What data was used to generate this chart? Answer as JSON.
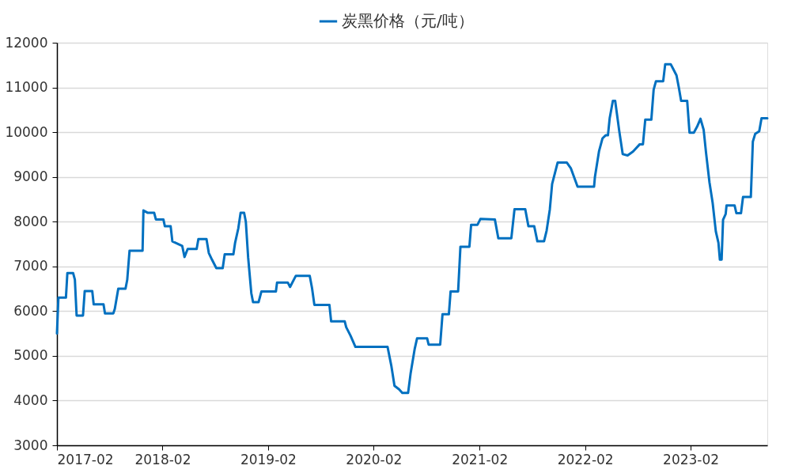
{
  "chart_data": {
    "type": "line",
    "x": [
      "2017-02-01",
      "2017-02-06",
      "2017-03-04",
      "2017-03-09",
      "2017-03-29",
      "2017-04-04",
      "2017-04-10",
      "2017-05-02",
      "2017-05-08",
      "2017-06-03",
      "2017-06-08",
      "2017-07-12",
      "2017-07-17",
      "2017-08-15",
      "2017-08-20",
      "2017-09-01",
      "2017-09-26",
      "2017-10-02",
      "2017-10-10",
      "2017-11-24",
      "2017-11-27",
      "2017-12-11",
      "2018-01-03",
      "2018-01-09",
      "2018-02-04",
      "2018-02-09",
      "2018-03-01",
      "2018-03-07",
      "2018-04-10",
      "2018-04-18",
      "2018-04-29",
      "2018-05-30",
      "2018-06-05",
      "2018-07-03",
      "2018-07-11",
      "2018-07-22",
      "2018-08-06",
      "2018-08-28",
      "2018-09-04",
      "2018-10-04",
      "2018-10-10",
      "2018-10-21",
      "2018-10-29",
      "2018-11-10",
      "2018-11-16",
      "2018-11-24",
      "2018-12-05",
      "2018-12-11",
      "2018-12-30",
      "2019-01-09",
      "2019-02-28",
      "2019-03-04",
      "2019-04-10",
      "2019-04-18",
      "2019-05-08",
      "2019-06-25",
      "2019-07-03",
      "2019-07-11",
      "2019-09-01",
      "2019-09-07",
      "2019-10-24",
      "2019-10-29",
      "2019-11-13",
      "2019-11-30",
      "2020-03-20",
      "2020-04-02",
      "2020-04-13",
      "2020-04-29",
      "2020-05-10",
      "2020-05-30",
      "2020-06-08",
      "2020-06-22",
      "2020-06-30",
      "2020-08-04",
      "2020-08-09",
      "2020-09-18",
      "2020-09-26",
      "2020-10-18",
      "2020-10-24",
      "2020-11-19",
      "2020-11-27",
      "2020-12-28",
      "2021-01-03",
      "2021-01-25",
      "2021-02-04",
      "2021-03-26",
      "2021-04-07",
      "2021-05-22",
      "2021-06-02",
      "2021-07-09",
      "2021-07-20",
      "2021-08-09",
      "2021-08-20",
      "2021-09-12",
      "2021-09-21",
      "2021-10-02",
      "2021-10-10",
      "2021-10-29",
      "2021-11-30",
      "2021-12-14",
      "2022-01-06",
      "2022-03-04",
      "2022-03-07",
      "2022-03-21",
      "2022-04-02",
      "2022-04-13",
      "2022-04-21",
      "2022-04-27",
      "2022-05-08",
      "2022-05-16",
      "2022-05-30",
      "2022-06-11",
      "2022-06-28",
      "2022-07-17",
      "2022-08-09",
      "2022-08-20",
      "2022-08-28",
      "2022-09-18",
      "2022-09-26",
      "2022-10-04",
      "2022-10-29",
      "2022-11-05",
      "2022-11-24",
      "2022-12-02",
      "2022-12-14",
      "2022-12-22",
      "2022-12-30",
      "2023-01-20",
      "2023-01-28",
      "2023-02-12",
      "2023-02-23",
      "2023-03-07",
      "2023-03-18",
      "2023-03-26",
      "2023-04-07",
      "2023-04-18",
      "2023-04-29",
      "2023-05-08",
      "2023-05-13",
      "2023-05-19",
      "2023-05-24",
      "2023-06-02",
      "2023-06-05",
      "2023-07-03",
      "2023-07-09",
      "2023-07-25",
      "2023-08-01",
      "2023-08-28",
      "2023-09-01",
      "2023-09-04",
      "2023-09-12",
      "2023-09-26",
      "2023-10-04",
      "2023-10-24"
    ],
    "series": [
      {
        "name": "炭黑价格（元/吨）",
        "color": "#0070c0",
        "values": [
          5500,
          6300,
          6300,
          6850,
          6850,
          6700,
          5900,
          5900,
          6450,
          6450,
          6150,
          6150,
          5950,
          5950,
          6050,
          6500,
          6500,
          6700,
          7350,
          7350,
          8250,
          8200,
          8200,
          8050,
          8050,
          7900,
          7900,
          7560,
          7460,
          7210,
          7390,
          7390,
          7610,
          7610,
          7300,
          7150,
          6960,
          6960,
          7270,
          7270,
          7530,
          7850,
          8200,
          8200,
          8000,
          7200,
          6400,
          6200,
          6200,
          6440,
          6440,
          6640,
          6640,
          6540,
          6790,
          6790,
          6510,
          6140,
          6140,
          5770,
          5770,
          5640,
          5450,
          5200,
          5200,
          4780,
          4330,
          4250,
          4170,
          4170,
          4620,
          5160,
          5390,
          5390,
          5250,
          5250,
          5930,
          5930,
          6440,
          6440,
          7440,
          7440,
          7930,
          7930,
          8060,
          8050,
          7630,
          7630,
          8280,
          8280,
          7900,
          7900,
          7560,
          7560,
          7800,
          8270,
          8840,
          9320,
          9320,
          9190,
          8780,
          8780,
          9000,
          9570,
          9860,
          9930,
          9930,
          10310,
          10700,
          10700,
          10030,
          9510,
          9480,
          9570,
          9730,
          9730,
          10280,
          10280,
          10950,
          11140,
          11140,
          11520,
          11520,
          11420,
          11270,
          11000,
          10700,
          10700,
          9990,
          9990,
          10120,
          10300,
          10050,
          9550,
          8880,
          8420,
          7780,
          7530,
          7150,
          7150,
          8040,
          8170,
          8360,
          8360,
          8190,
          8190,
          8550,
          8550,
          9250,
          9790,
          9960,
          10020,
          10310,
          10310
        ]
      }
    ],
    "xlim": [
      "2017-02-01",
      "2023-10-24"
    ],
    "xticks": [
      "2017-02",
      "2018-02",
      "2019-02",
      "2020-02",
      "2021-02",
      "2022-02",
      "2023-02"
    ],
    "ylim": [
      3000,
      12000
    ],
    "yticks": [
      3000,
      4000,
      5000,
      6000,
      7000,
      8000,
      9000,
      10000,
      11000,
      12000
    ],
    "grid": "y",
    "legend": "top",
    "marker": "none",
    "line_style": "solid"
  }
}
